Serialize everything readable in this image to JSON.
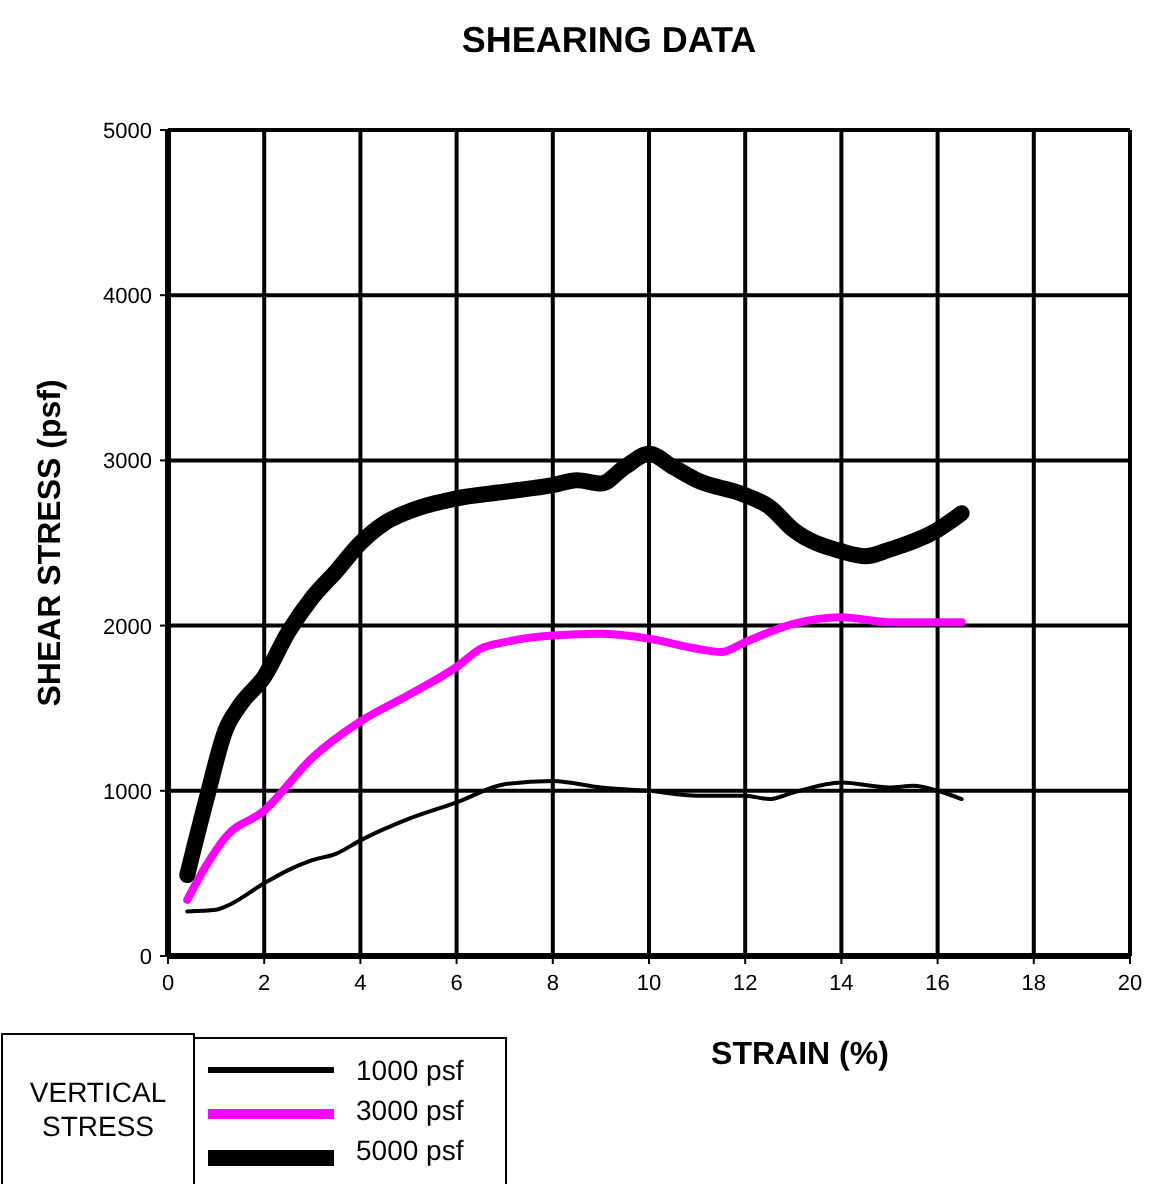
{
  "chart_data": {
    "type": "line",
    "title": "SHEARING DATA",
    "xlabel": "STRAIN (%)",
    "ylabel": "SHEAR STRESS (psf)",
    "legend_title": "VERTICAL STRESS",
    "legend": "bottom left",
    "grid": true,
    "marker": "none",
    "line_style": "solid",
    "xlim": [
      0,
      20
    ],
    "xticks": [
      0,
      2,
      4,
      6,
      8,
      10,
      12,
      14,
      16,
      18,
      20
    ],
    "ylim": [
      0,
      5000
    ],
    "yticks": [
      0,
      1000,
      2000,
      3000,
      4000,
      5000
    ],
    "series": [
      {
        "name": "1000 psf",
        "color": "#000000",
        "x": [
          0.4,
          1,
          1.2,
          2,
          2.5,
          3,
          3.5,
          4,
          5,
          6,
          7,
          8,
          9,
          10,
          11,
          12,
          12.5,
          13,
          14,
          15,
          15.5,
          16,
          16.5
        ],
        "values": [
          270,
          280,
          300,
          440,
          520,
          580,
          620,
          700,
          830,
          930,
          1040,
          1060,
          1020,
          1000,
          970,
          970,
          950,
          990,
          1050,
          1020,
          1030,
          1000,
          950
        ]
      },
      {
        "name": "3000 psf",
        "color": "#ff00ff",
        "x": [
          0.4,
          0.8,
          1.2,
          2,
          3,
          4,
          5,
          6,
          6.5,
          7,
          8,
          9,
          10,
          11,
          11.5,
          12,
          13,
          14,
          15,
          16.5
        ],
        "values": [
          340,
          550,
          720,
          880,
          1200,
          1420,
          1580,
          1750,
          1860,
          1900,
          1940,
          1950,
          1920,
          1860,
          1840,
          1900,
          2010,
          2050,
          2020,
          2020
        ]
      },
      {
        "name": "5000 psf",
        "color": "#000000",
        "x": [
          0.4,
          0.8,
          1.2,
          1.5,
          2,
          2.5,
          3,
          3.5,
          4,
          4.5,
          5,
          6,
          7,
          8,
          8.5,
          9,
          9.5,
          10,
          10.5,
          11,
          12,
          12.5,
          13,
          14,
          14.5,
          15,
          16,
          16.5
        ],
        "values": [
          490,
          950,
          1370,
          1520,
          1690,
          1960,
          2170,
          2330,
          2500,
          2620,
          2690,
          2770,
          2810,
          2850,
          2880,
          2860,
          2960,
          3040,
          2960,
          2880,
          2790,
          2720,
          2580,
          2450,
          2420,
          2460,
          2580,
          2680
        ]
      }
    ]
  }
}
